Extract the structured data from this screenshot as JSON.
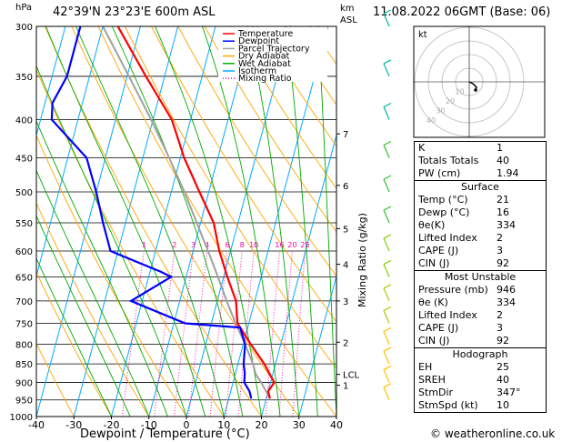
{
  "header": {
    "hpa_label": "hPa",
    "location": "42°39'N  23°23'E  600m  ASL",
    "time": "11.08.2022  06GMT  (Base: 06)",
    "km_label_1": "km",
    "km_label_2": "ASL"
  },
  "colors": {
    "temperature": "#ff0000",
    "dewpoint": "#0000ff",
    "parcel": "#a0a0a0",
    "dry_adiabat": "#ffa500",
    "wet_adiabat": "#00aa00",
    "isotherm": "#00aaff",
    "mixing_ratio": "#ff00aa"
  },
  "legend": [
    {
      "label": "Temperature",
      "color": "#ff0000",
      "style": "solid"
    },
    {
      "label": "Dewpoint",
      "color": "#0000ff",
      "style": "solid"
    },
    {
      "label": "Parcel Trajectory",
      "color": "#a0a0a0",
      "style": "solid"
    },
    {
      "label": "Dry Adiabat",
      "color": "#ffa500",
      "style": "solid"
    },
    {
      "label": "Wet Adiabat",
      "color": "#00aa00",
      "style": "solid"
    },
    {
      "label": "Isotherm",
      "color": "#00aaff",
      "style": "solid"
    },
    {
      "label": "Mixing Ratio",
      "color": "#ff00aa",
      "style": "dotted"
    }
  ],
  "chart_data": {
    "type": "line",
    "xlabel": "Dewpoint / Temperature (°C)",
    "ylabel_right": "Mixing Ratio (g/kg)",
    "xlim": [
      -40,
      40
    ],
    "ylim": [
      1000,
      300
    ],
    "pressure_ticks": [
      300,
      350,
      400,
      450,
      500,
      550,
      600,
      650,
      700,
      750,
      800,
      850,
      900,
      950,
      1000
    ],
    "temperature_ticks": [
      -40,
      -30,
      -20,
      -10,
      0,
      10,
      20,
      30,
      40
    ],
    "km_ticks": [
      {
        "label": "7",
        "p": 418
      },
      {
        "label": "6",
        "p": 490
      },
      {
        "label": "5",
        "p": 560
      },
      {
        "label": "4",
        "p": 625
      },
      {
        "label": "3",
        "p": 700
      },
      {
        "label": "2",
        "p": 795
      },
      {
        "label": "1",
        "p": 908
      },
      {
        "label": "LCL",
        "p": 878
      }
    ],
    "mixing_ratio_labels": [
      "1",
      "2",
      "3",
      "4",
      "6",
      "8",
      "10",
      "16",
      "20",
      "25"
    ],
    "mixing_ratio_values": [
      1,
      2,
      3,
      4,
      6,
      8,
      10,
      16,
      20,
      25
    ],
    "series": [
      {
        "name": "Temperature",
        "p": [
          946,
          925,
          900,
          875,
          850,
          800,
          750,
          700,
          650,
          600,
          550,
          500,
          450,
          400,
          350,
          300
        ],
        "t": [
          21,
          20,
          21,
          19,
          17,
          12,
          7,
          5,
          1,
          -3,
          -6.5,
          -12.5,
          -19,
          -25,
          -35,
          -46
        ]
      },
      {
        "name": "Dewpoint",
        "p": [
          946,
          925,
          900,
          875,
          850,
          800,
          760,
          750,
          700,
          650,
          640,
          600,
          550,
          500,
          450,
          400,
          380,
          350,
          300
        ],
        "t": [
          16,
          15,
          13,
          12.5,
          11.5,
          10.5,
          8,
          -7,
          -23,
          -14,
          -17,
          -32,
          -36,
          -40,
          -45,
          -57,
          -58,
          -56,
          -56
        ]
      },
      {
        "name": "Parcel Trajectory",
        "p": [
          946,
          900,
          878,
          850,
          800,
          750,
          700,
          650,
          600,
          550,
          500,
          450,
          400,
          350,
          300
        ],
        "t": [
          21,
          17.5,
          15.5,
          14,
          10.5,
          6.5,
          2.5,
          -1.5,
          -6,
          -11,
          -16.5,
          -23,
          -30.5,
          -39.5,
          -50
        ]
      }
    ]
  },
  "hodograph": {
    "label": "kt",
    "ring_labels": [
      "10",
      "20",
      "30",
      "40"
    ]
  },
  "indices": [
    {
      "label": "K",
      "value": "1"
    },
    {
      "label": "Totals Totals",
      "value": "40"
    },
    {
      "label": "PW (cm)",
      "value": "1.94"
    }
  ],
  "surface": {
    "title": "Surface",
    "rows": [
      {
        "label": "Temp (°C)",
        "value": "21"
      },
      {
        "label": "Dewp (°C)",
        "value": "16"
      },
      {
        "label": "θe(K)",
        "value": "334"
      },
      {
        "label": "Lifted Index",
        "value": "2"
      },
      {
        "label": "CAPE (J)",
        "value": "3"
      },
      {
        "label": "CIN (J)",
        "value": "92"
      }
    ]
  },
  "most_unstable": {
    "title": "Most Unstable",
    "rows": [
      {
        "label": "Pressure (mb)",
        "value": "946"
      },
      {
        "label": "θe (K)",
        "value": "334"
      },
      {
        "label": "Lifted Index",
        "value": "2"
      },
      {
        "label": "CAPE (J)",
        "value": "3"
      },
      {
        "label": "CIN (J)",
        "value": "92"
      }
    ]
  },
  "hodograph_table": {
    "title": "Hodograph",
    "rows": [
      {
        "label": "EH",
        "value": "25"
      },
      {
        "label": "SREH",
        "value": "40"
      },
      {
        "label": "StmDir",
        "value": "347°"
      },
      {
        "label": "StmSpd (kt)",
        "value": "10"
      }
    ]
  },
  "credit": "© weatheronline.co.uk"
}
